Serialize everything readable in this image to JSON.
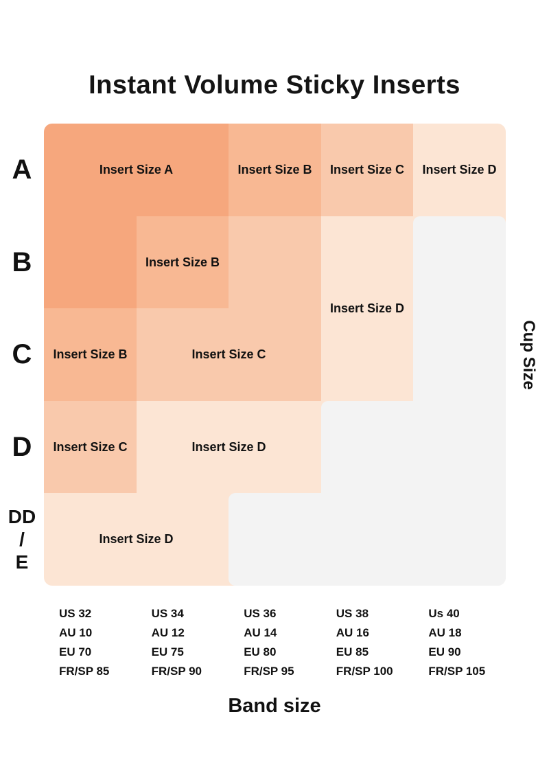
{
  "title": "Instant Volume Sticky Inserts",
  "cup_axis": "Cup Size",
  "band_axis": "Band size",
  "chart_data": {
    "type": "heatmap",
    "title": "Instant Volume Sticky Inserts",
    "x_axis_label": "Band size",
    "y_axis_label": "Cup Size",
    "cup_sizes": [
      [
        "A"
      ],
      [
        "B"
      ],
      [
        "C"
      ],
      [
        "D"
      ],
      [
        "DD",
        "/",
        "E"
      ]
    ],
    "band_sizes": [
      [
        "US 32",
        "AU 10",
        "EU 70",
        "FR/SP 85"
      ],
      [
        "US 34",
        "AU 12",
        "EU 75",
        "FR/SP 90"
      ],
      [
        "US 36",
        "AU 14",
        "EU 80",
        "FR/SP 95"
      ],
      [
        "US 38",
        "AU 16",
        "EU 85",
        "FR/SP 100"
      ],
      [
        "Us 40",
        "AU 18",
        "EU 90",
        "FR/SP 105"
      ]
    ],
    "matrix": [
      [
        "A",
        "A",
        "B",
        "C",
        "D"
      ],
      [
        "A",
        "B",
        "C",
        "D",
        null
      ],
      [
        "B",
        "C",
        "C",
        "D",
        null
      ],
      [
        "C",
        "D",
        "D",
        null,
        null
      ],
      [
        "D",
        "D",
        null,
        null,
        null
      ]
    ],
    "region_labels": [
      {
        "text": "Insert Size A",
        "c0": 0,
        "c1": 2,
        "r0": 0,
        "r1": 1
      },
      {
        "text": "Insert Size B",
        "c0": 2,
        "c1": 3,
        "r0": 0,
        "r1": 1
      },
      {
        "text": "Insert Size C",
        "c0": 3,
        "c1": 4,
        "r0": 0,
        "r1": 1
      },
      {
        "text": "Insert Size D",
        "c0": 4,
        "c1": 5,
        "r0": 0,
        "r1": 1
      },
      {
        "text": "Insert Size B",
        "c0": 1,
        "c1": 2,
        "r0": 1,
        "r1": 2
      },
      {
        "text": "Insert Size D",
        "c0": 3,
        "c1": 4,
        "r0": 1,
        "r1": 3
      },
      {
        "text": "Insert Size B",
        "c0": 0,
        "c1": 1,
        "r0": 2,
        "r1": 3
      },
      {
        "text": "Insert Size C",
        "c0": 1,
        "c1": 3,
        "r0": 2,
        "r1": 3
      },
      {
        "text": "Insert Size C",
        "c0": 0,
        "c1": 1,
        "r0": 3,
        "r1": 4
      },
      {
        "text": "Insert Size D",
        "c0": 1,
        "c1": 3,
        "r0": 3,
        "r1": 4
      },
      {
        "text": "Insert Size D",
        "c0": 0,
        "c1": 2,
        "r0": 4,
        "r1": 5
      }
    ],
    "colors": {
      "A": "#F6A77D",
      "B": "#F8B893",
      "C": "#F9C9AC",
      "D": "#FCE5D4",
      "empty": "#F3F3F3"
    }
  }
}
